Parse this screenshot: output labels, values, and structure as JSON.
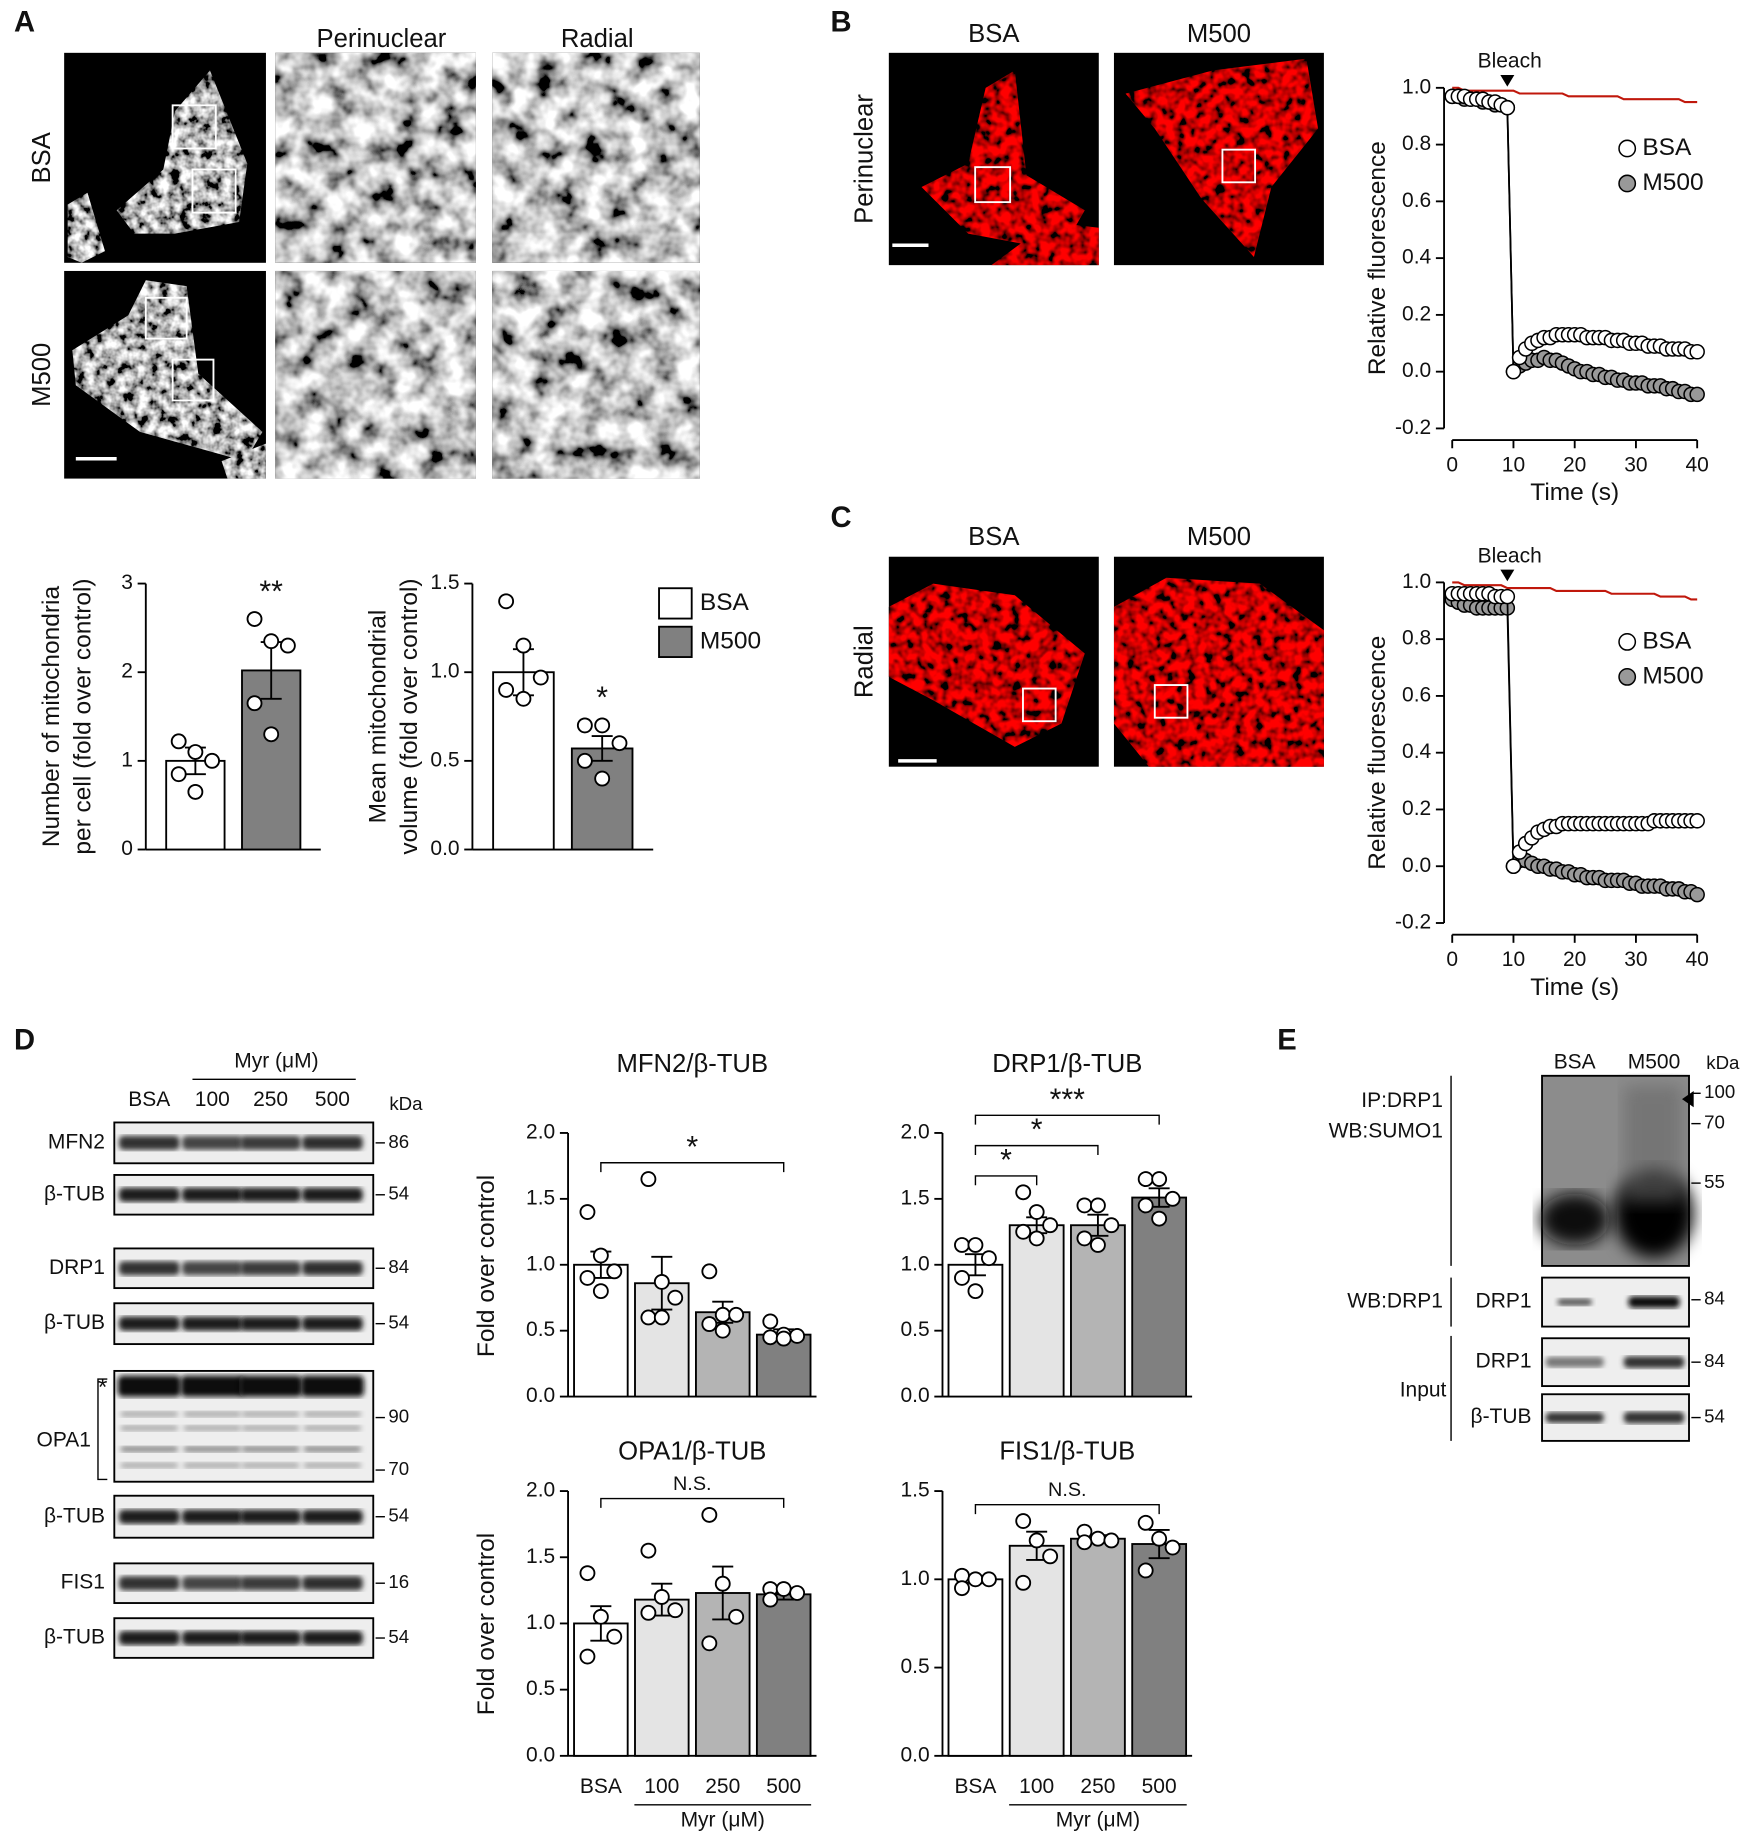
{
  "figure": {
    "panel_labels": {
      "a": "A",
      "b": "B",
      "c": "C",
      "d": "D",
      "e": "E"
    },
    "a_images": {
      "columns": [
        "Perinuclear",
        "Radial"
      ],
      "rows": [
        "BSA",
        "M500"
      ]
    },
    "b_images": {
      "columns": [
        "BSA",
        "M500"
      ],
      "row": "Perinuclear"
    },
    "c_images": {
      "columns": [
        "BSA",
        "M500"
      ],
      "row": "Radial"
    },
    "d_blot": {
      "group": "Myr (μM)",
      "lanes": [
        "BSA",
        "100",
        "250",
        "500"
      ],
      "unit": "kDa",
      "rows": [
        {
          "label": "MFN2",
          "kda": 86
        },
        {
          "label": "β-TUB",
          "kda": 54
        },
        {
          "label": "DRP1",
          "kda": 84
        },
        {
          "label": "β-TUB",
          "kda": 54
        },
        {
          "label": "OPA1",
          "asterisk": "*",
          "kda": [
            90,
            70
          ]
        },
        {
          "label": "β-TUB",
          "kda": 54
        },
        {
          "label": "FIS1",
          "kda": 16
        },
        {
          "label": "β-TUB",
          "kda": 54
        }
      ]
    },
    "e_blot": {
      "lanes": [
        "BSA",
        "M500"
      ],
      "unit": "kDa",
      "ip": {
        "label": [
          "IP:DRP1",
          "WB:SUMO1"
        ],
        "kda": [
          100,
          70,
          55
        ]
      },
      "wb": {
        "group": "WB:DRP1",
        "label": "DRP1",
        "kda": 84
      },
      "input": {
        "group": "Input",
        "rows": [
          {
            "label": "DRP1",
            "kda": 84
          },
          {
            "label": "β-TUB",
            "kda": 54
          }
        ]
      }
    }
  },
  "chart_data": [
    {
      "type": "bar",
      "categories": [
        null,
        null
      ],
      "colors": [
        "#ffffff",
        "#808080"
      ],
      "values": [
        1.0,
        2.02
      ],
      "errors": [
        0.15,
        0.32
      ],
      "points": [
        [
          1.22,
          1.1,
          1.0,
          0.85,
          0.65
        ],
        [
          2.6,
          2.35,
          2.3,
          1.65,
          1.3
        ]
      ],
      "significance": [
        null,
        "**"
      ],
      "ylabel": [
        "Number of mitochondria",
        "per cell (fold over control)"
      ],
      "ylim": [
        0,
        3
      ],
      "yticks": [
        0,
        1,
        2,
        3
      ],
      "legend": [
        {
          "name": "BSA",
          "color": "#ffffff"
        },
        {
          "name": "M500",
          "color": "#808080"
        }
      ]
    },
    {
      "type": "bar",
      "categories": [
        null,
        null
      ],
      "colors": [
        "#ffffff",
        "#808080"
      ],
      "values": [
        1.0,
        0.57
      ],
      "errors": [
        0.13,
        0.07
      ],
      "points": [
        [
          1.4,
          1.15,
          0.97,
          0.9,
          0.85
        ],
        [
          0.7,
          0.7,
          0.6,
          0.5,
          0.4
        ]
      ],
      "significance": [
        null,
        "*"
      ],
      "ylabel": [
        "Mean mitochondrial",
        "volume (fold over control)"
      ],
      "ylim": [
        0,
        1.5
      ],
      "yticks": [
        {
          "value": 0,
          "label": "0.0"
        },
        0.5,
        {
          "value": 1,
          "label": "1.0"
        },
        1.5
      ]
    },
    {
      "type": "line",
      "x": [
        0,
        1,
        2,
        3,
        4,
        5,
        6,
        7,
        8,
        9,
        10,
        11,
        12,
        13,
        14,
        15,
        16,
        17,
        18,
        19,
        20,
        21,
        22,
        23,
        24,
        25,
        26,
        27,
        28,
        29,
        30,
        31,
        32,
        33,
        34,
        35,
        36,
        37,
        38,
        39,
        40
      ],
      "series": [
        {
          "name": "BSA",
          "color": "#ffffff",
          "marker": "circle",
          "values": [
            0.97,
            0.97,
            0.97,
            0.96,
            0.96,
            0.96,
            0.95,
            0.95,
            0.94,
            0.93,
            0.0,
            0.05,
            0.08,
            0.1,
            0.11,
            0.12,
            0.12,
            0.13,
            0.13,
            0.13,
            0.13,
            0.13,
            0.12,
            0.12,
            0.12,
            0.12,
            0.11,
            0.11,
            0.11,
            0.1,
            0.1,
            0.1,
            0.09,
            0.09,
            0.09,
            0.08,
            0.08,
            0.08,
            0.08,
            0.07,
            0.07
          ]
        },
        {
          "name": "M500",
          "color": "#999999",
          "marker": "circle",
          "values": [
            0.97,
            0.97,
            0.96,
            0.96,
            0.96,
            0.95,
            0.95,
            0.94,
            0.94,
            0.93,
            0.0,
            0.02,
            0.03,
            0.04,
            0.04,
            0.05,
            0.04,
            0.04,
            0.03,
            0.02,
            0.01,
            0.0,
            0.0,
            -0.01,
            -0.01,
            -0.02,
            -0.02,
            -0.03,
            -0.03,
            -0.04,
            -0.04,
            -0.04,
            -0.05,
            -0.05,
            -0.05,
            -0.06,
            -0.06,
            -0.07,
            -0.07,
            -0.08,
            -0.08
          ]
        },
        {
          "color": "#c0180c",
          "values": [
            1.0,
            1.0,
            0.99,
            0.99,
            0.99,
            0.99,
            0.99,
            0.99,
            0.99,
            0.99,
            0.99,
            0.98,
            0.98,
            0.98,
            0.98,
            0.98,
            0.98,
            0.98,
            0.98,
            0.97,
            0.97,
            0.97,
            0.97,
            0.97,
            0.97,
            0.97,
            0.97,
            0.97,
            0.96,
            0.96,
            0.96,
            0.96,
            0.96,
            0.96,
            0.96,
            0.96,
            0.96,
            0.96,
            0.95,
            0.95,
            0.95
          ]
        }
      ],
      "xlim": [
        0,
        40
      ],
      "xticks": [
        0,
        10,
        20,
        30,
        40
      ],
      "ylim": [
        -0.2,
        1.0
      ],
      "yticks": [
        -0.2,
        {
          "value": 0,
          "label": "0.0"
        },
        0.2,
        0.4,
        0.6,
        0.8,
        {
          "value": 1,
          "label": "1.0"
        }
      ],
      "xlabel": "Time (s)",
      "ylabel": "Relative  fluorescence",
      "annotation": {
        "text": "Bleach",
        "x": 9
      }
    },
    {
      "type": "line",
      "x": [
        0,
        1,
        2,
        3,
        4,
        5,
        6,
        7,
        8,
        9,
        10,
        11,
        12,
        13,
        14,
        15,
        16,
        17,
        18,
        19,
        20,
        21,
        22,
        23,
        24,
        25,
        26,
        27,
        28,
        29,
        30,
        31,
        32,
        33,
        34,
        35,
        36,
        37,
        38,
        39,
        40
      ],
      "series": [
        {
          "name": "BSA",
          "color": "#ffffff",
          "marker": "circle",
          "values": [
            0.96,
            0.96,
            0.96,
            0.96,
            0.96,
            0.96,
            0.96,
            0.95,
            0.95,
            0.95,
            0.0,
            0.05,
            0.08,
            0.1,
            0.12,
            0.13,
            0.14,
            0.14,
            0.15,
            0.15,
            0.15,
            0.15,
            0.15,
            0.15,
            0.15,
            0.15,
            0.15,
            0.15,
            0.15,
            0.15,
            0.15,
            0.15,
            0.15,
            0.16,
            0.16,
            0.16,
            0.16,
            0.16,
            0.16,
            0.16,
            0.16
          ]
        },
        {
          "name": "M500",
          "color": "#999999",
          "marker": "circle",
          "values": [
            0.94,
            0.93,
            0.92,
            0.92,
            0.91,
            0.91,
            0.91,
            0.91,
            0.91,
            0.91,
            0.0,
            0.02,
            0.02,
            0.01,
            0.0,
            0.0,
            -0.01,
            -0.01,
            -0.02,
            -0.02,
            -0.03,
            -0.03,
            -0.04,
            -0.04,
            -0.04,
            -0.05,
            -0.05,
            -0.05,
            -0.05,
            -0.06,
            -0.06,
            -0.07,
            -0.07,
            -0.07,
            -0.07,
            -0.08,
            -0.08,
            -0.08,
            -0.09,
            -0.09,
            -0.1
          ]
        },
        {
          "color": "#c0180c",
          "values": [
            1.0,
            1.0,
            0.99,
            0.99,
            0.99,
            0.99,
            0.99,
            0.99,
            0.99,
            0.98,
            0.98,
            0.98,
            0.98,
            0.98,
            0.98,
            0.98,
            0.98,
            0.97,
            0.97,
            0.97,
            0.97,
            0.97,
            0.97,
            0.97,
            0.97,
            0.97,
            0.96,
            0.96,
            0.96,
            0.96,
            0.96,
            0.96,
            0.96,
            0.96,
            0.95,
            0.95,
            0.95,
            0.95,
            0.95,
            0.94,
            0.94
          ]
        }
      ],
      "xlim": [
        0,
        40
      ],
      "xticks": [
        0,
        10,
        20,
        30,
        40
      ],
      "ylim": [
        -0.2,
        1.0
      ],
      "yticks": [
        -0.2,
        {
          "value": 0,
          "label": "0.0"
        },
        0.2,
        0.4,
        0.6,
        0.8,
        {
          "value": 1,
          "label": "1.0"
        }
      ],
      "xlabel": "Time (s)",
      "ylabel": "Relative  fluorescence",
      "annotation": {
        "text": "Bleach",
        "x": 9
      }
    },
    {
      "type": "bar",
      "title": "MFN2/β-TUB",
      "categories": [
        null,
        null,
        null,
        null
      ],
      "colors": [
        "#ffffff",
        "#e4e4e4",
        "#b4b4b4",
        "#808080"
      ],
      "values": [
        1.0,
        0.86,
        0.64,
        0.47
      ],
      "errors": [
        0.1,
        0.2,
        0.08,
        0.04
      ],
      "points": [
        [
          1.4,
          1.07,
          0.95,
          0.9,
          0.8
        ],
        [
          1.65,
          0.87,
          0.75,
          0.6,
          0.6
        ],
        [
          0.95,
          0.62,
          0.62,
          0.55,
          0.5
        ],
        [
          0.57,
          0.47,
          0.46,
          0.45,
          0.44
        ]
      ],
      "brackets": [
        {
          "from": 0,
          "to": 3,
          "label": "*"
        }
      ],
      "ylabel": [
        "Fold over control"
      ],
      "ylim": [
        0,
        2
      ],
      "yticks": [
        {
          "value": 0,
          "label": "0.0"
        },
        0.5,
        {
          "value": 1,
          "label": "1.0"
        },
        1.5,
        {
          "value": 2,
          "label": "2.0"
        }
      ]
    },
    {
      "type": "bar",
      "title": "DRP1/β-TUB",
      "categories": [
        null,
        null,
        null,
        null
      ],
      "colors": [
        "#ffffff",
        "#e4e4e4",
        "#b4b4b4",
        "#808080"
      ],
      "values": [
        1.0,
        1.3,
        1.3,
        1.51
      ],
      "errors": [
        0.08,
        0.06,
        0.08,
        0.07
      ],
      "points": [
        [
          1.15,
          1.15,
          1.05,
          0.9,
          0.8
        ],
        [
          1.55,
          1.4,
          1.3,
          1.25,
          1.2
        ],
        [
          1.45,
          1.45,
          1.3,
          1.2,
          1.15
        ],
        [
          1.65,
          1.65,
          1.5,
          1.45,
          1.35
        ]
      ],
      "brackets": [
        {
          "from": 0,
          "to": 1,
          "label": "*"
        },
        {
          "from": 0,
          "to": 2,
          "label": "*"
        },
        {
          "from": 0,
          "to": 3,
          "label": "***"
        }
      ],
      "ylim": [
        0,
        2
      ],
      "yticks": [
        {
          "value": 0,
          "label": "0.0"
        },
        0.5,
        {
          "value": 1,
          "label": "1.0"
        },
        1.5,
        {
          "value": 2,
          "label": "2.0"
        }
      ]
    },
    {
      "type": "bar",
      "title": "OPA1/β-TUB",
      "categories": [
        "BSA",
        "100",
        "250",
        "500"
      ],
      "colors": [
        "#ffffff",
        "#e4e4e4",
        "#b4b4b4",
        "#808080"
      ],
      "values": [
        1.0,
        1.18,
        1.23,
        1.22
      ],
      "errors": [
        0.13,
        0.12,
        0.2,
        0.04
      ],
      "points": [
        [
          1.38,
          1.05,
          0.9,
          0.75
        ],
        [
          1.55,
          1.2,
          1.1,
          1.08
        ],
        [
          1.82,
          1.3,
          1.05,
          0.85
        ],
        [
          1.26,
          1.26,
          1.23,
          1.18
        ]
      ],
      "brackets": [
        {
          "from": 0,
          "to": 3,
          "label": "N.S."
        }
      ],
      "xlabel": "Myr (μM)",
      "ylabel": [
        "Fold over control"
      ],
      "ylim": [
        0,
        2
      ],
      "yticks": [
        {
          "value": 0,
          "label": "0.0"
        },
        0.5,
        {
          "value": 1,
          "label": "1.0"
        },
        1.5,
        {
          "value": 2,
          "label": "2.0"
        }
      ]
    },
    {
      "type": "bar",
      "title": "FIS1/β-TUB",
      "categories": [
        "BSA",
        "100",
        "250",
        "500"
      ],
      "colors": [
        "#ffffff",
        "#e4e4e4",
        "#b4b4b4",
        "#808080"
      ],
      "values": [
        1.0,
        1.19,
        1.23,
        1.2
      ],
      "errors": [
        0.02,
        0.08,
        0.02,
        0.08
      ],
      "points": [
        [
          1.02,
          1.0,
          1.0,
          0.95
        ],
        [
          1.33,
          1.22,
          1.13,
          0.98
        ],
        [
          1.27,
          1.23,
          1.22,
          1.21
        ],
        [
          1.32,
          1.23,
          1.18,
          1.05
        ]
      ],
      "brackets": [
        {
          "from": 0,
          "to": 3,
          "label": "N.S."
        }
      ],
      "xlabel": "Myr (μM)",
      "ylim": [
        0,
        1.5
      ],
      "yticks": [
        {
          "value": 0,
          "label": "0.0"
        },
        0.5,
        {
          "value": 1,
          "label": "1.0"
        },
        1.5
      ]
    }
  ]
}
